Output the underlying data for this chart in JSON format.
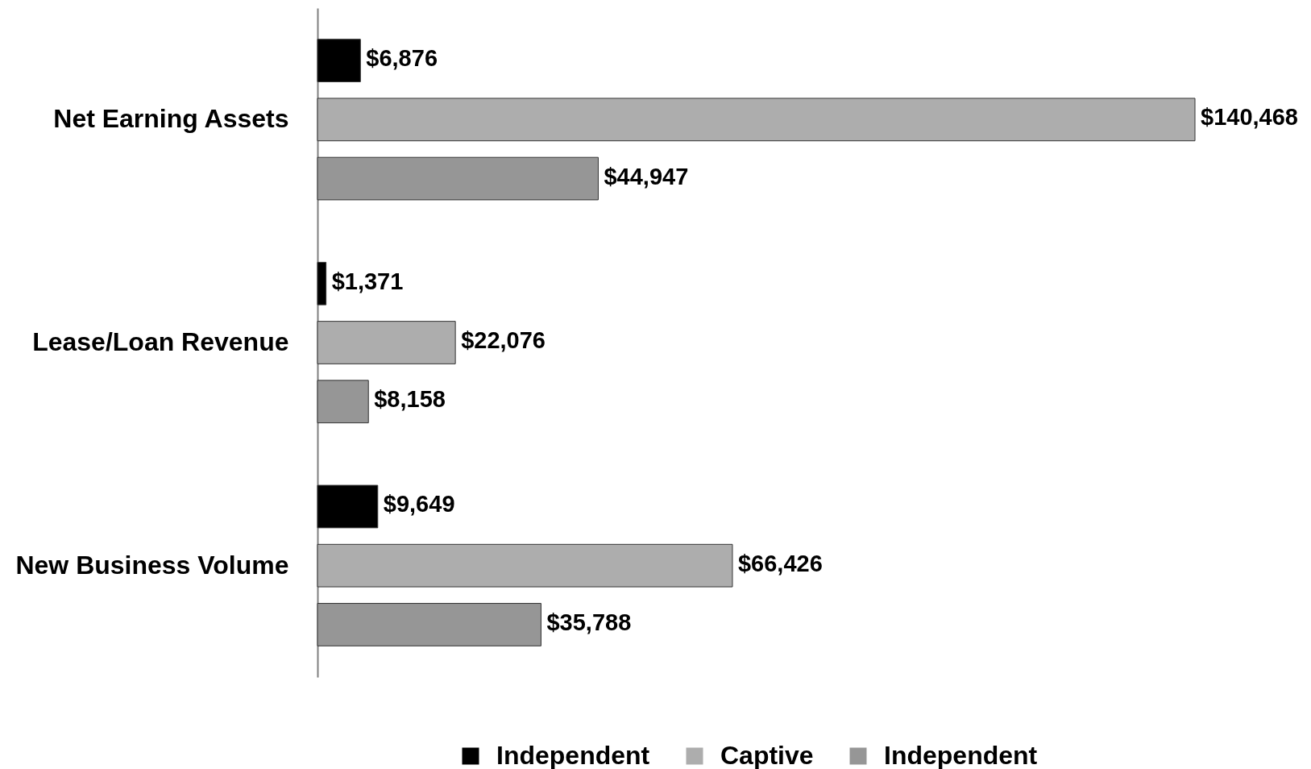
{
  "chart_data": {
    "type": "bar",
    "orientation": "horizontal",
    "legend": "bottom",
    "categories": [
      "Net Earning Assets",
      "Lease/Loan Revenue",
      "New Business Volume"
    ],
    "series": [
      {
        "name": "Independent",
        "color": "#000000",
        "values": [
          6876,
          1371,
          9649
        ],
        "value_labels": [
          "$6,876",
          "$1,371",
          "$9,649"
        ]
      },
      {
        "name": "Captive",
        "color": "#adadad",
        "values": [
          140468,
          22076,
          66426
        ],
        "value_labels": [
          "$140,468",
          "$22,076",
          "$66,426"
        ]
      },
      {
        "name": "Independent",
        "color": "#969696",
        "values": [
          44947,
          8158,
          35788
        ],
        "value_labels": [
          "$44,947",
          "$8,158",
          "$35,788"
        ]
      }
    ]
  }
}
